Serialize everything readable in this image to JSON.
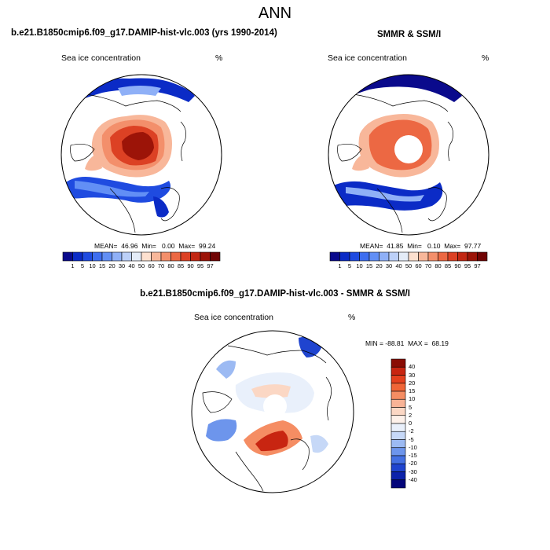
{
  "figure": {
    "title": "ANN",
    "run_title": "b.e21.B1850cmip6.f09_g17.DAMIP-hist-vlc.003 (yrs 1990-2014)",
    "obs_title": "SMMR & SSM/I",
    "diff_title": "b.e21.B1850cmip6.f09_g17.DAMIP-hist-vlc.003 - SMMR & SSM/I"
  },
  "panels": {
    "model": {
      "label": "Sea ice concentration",
      "unit": "%",
      "stats": "MEAN=  46.96  Min=   0.00  Max=  99.24"
    },
    "obs": {
      "label": "Sea ice concentration",
      "unit": "%",
      "stats": "MEAN=  41.85  Min=   0.10  Max=  97.77"
    },
    "diff": {
      "label": "Sea ice concentration",
      "unit": "%",
      "stats": "MIN = -88.81  MAX =  68.19"
    }
  },
  "colorbar_abs": {
    "ticks": [
      "1",
      "5",
      "10",
      "15",
      "20",
      "30",
      "40",
      "50",
      "60",
      "70",
      "80",
      "85",
      "90",
      "95",
      "97"
    ],
    "colors": [
      "#0a0a8c",
      "#0b2bc6",
      "#1f4be0",
      "#3e6ef0",
      "#628ff5",
      "#8fb0f7",
      "#bcd0f8",
      "#e4ecf8",
      "#fde0cf",
      "#f8b79a",
      "#f38f6b",
      "#ec6843",
      "#dc4124",
      "#c22713",
      "#9c1408",
      "#700404"
    ]
  },
  "colorbar_diff": {
    "ticks": [
      "40",
      "30",
      "20",
      "15",
      "10",
      "5",
      "2",
      "0",
      "-2",
      "-5",
      "-10",
      "-15",
      "-20",
      "-30",
      "-40"
    ],
    "colors": [
      "#8a0c04",
      "#c82511",
      "#e4401e",
      "#f06537",
      "#f58d63",
      "#f8b396",
      "#fbd7c4",
      "#fdf1ea",
      "#e9f0fb",
      "#c6d8f7",
      "#9cbaf3",
      "#6d95ec",
      "#4470e3",
      "#1f44cf",
      "#0c22aa",
      "#05067a"
    ]
  }
}
